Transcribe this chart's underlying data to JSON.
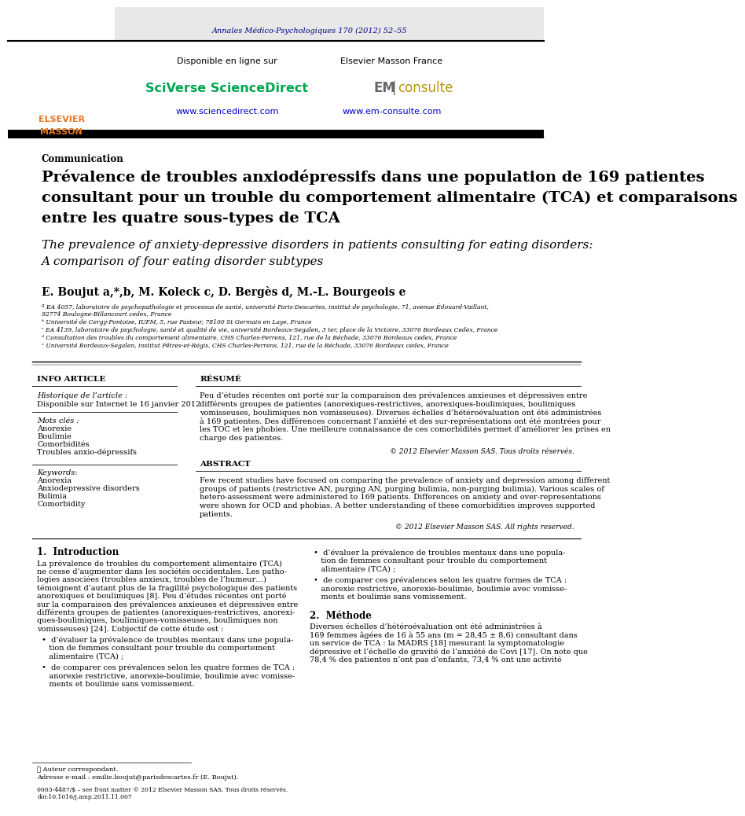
{
  "background_color": "#ffffff",
  "page_width": 9.92,
  "page_height": 13.23,
  "journal_line": "Annales Médico-Psychologiques 170 (2012) 52–55",
  "journal_line_color": "#000080",
  "header_bg_color": "#e8e8e8",
  "elsevier_color": "#e87722",
  "sciverse_color": "#00a651",
  "sciencedirect_url_color": "#0000cc",
  "disponible_text": "Disponible en ligne sur",
  "sciverse_text": "SciVerse ScienceDirect",
  "sciencedirect_url": "www.sciencedirect.com",
  "elsevier_masson_text": "Elsevier Masson France",
  "em_url": "www.em-consulte.com",
  "section_label": "Communication",
  "title_fr_lines": [
    "Prévalence de troubles anxiodépressifs dans une population de 169 patientes",
    "consultant pour un trouble du comportement alimentaire (TCA) et comparaisons",
    "entre les quatre sous-types de TCA"
  ],
  "title_en_lines": [
    "The prevalence of anxiety-depressive disorders in patients consulting for eating disorders:",
    "A comparison of four eating disorder subtypes"
  ],
  "authors": "E. Boujut a,*,b, M. Koleck c, D. Bergès d, M.-L. Bourgeois e",
  "affil_lines": [
    "ª EA 4057, laboratoire de psychopathologie et processus de santé, université Paris-Descartes, institut de psychologie, 71, avenue Édouard-Vaillant,",
    "92774 Boulogne-Billancourt cedex, France",
    "ᵇ Université de Cergy-Pontoise, IUFM, 5, rue Pasteur, 78100 St Germain en Laye, France",
    "ᶜ EA 4139, laboratoire de psychologie, santé et qualité de vie, université Bordeaux-Segalen, 3 ter, place de la Victoire, 33076 Bordeaux Cedex, France",
    "ᵈ Consultation des troubles du comportement alimentaire, CHS Charles-Perrens, 121, rue de la Béchade, 33076 Bordeaux cedex, France",
    "ᵉ Université Bordeaux-Segalen, institut Pêtres-et-Régis, CHS Charles-Perrens, 121, rue de la Béchade, 33076 Bordeaux cedex, France"
  ],
  "info_article_title": "INFO ARTICLE",
  "historique_label": "Historique de l’article :",
  "historique_date": "Disponible sur Internet le 16 janvier 2012",
  "mots_cles_label": "Mots clés :",
  "mots_cles": [
    "Anorexie",
    "Boulimie",
    "Comorbidités",
    "Troubles anxio-dépressifs"
  ],
  "keywords_label": "Keywords:",
  "keywords": [
    "Anorexia",
    "Anxiodepressive disorders",
    "Bulimia",
    "Comorbidity"
  ],
  "resume_title": "RÉSUMÉ",
  "resume_lines": [
    "Peu d’études récentes ont porté sur la comparaison des prévalences anxieuses et dépressives entre",
    "différents groupes de patientes (anorexiques-restrictives, anorexiques-boulimiques, boulimiques",
    "vomisseuses, boulimiques non vomisseuses). Diverses échelles d’hétéroévaluation ont été administrées",
    "à 169 patientes. Des différences concernant l’anxiété et des sur-représentations ont été montrées pour",
    "les TOC et les phobies. Une meilleure connaissance de ces comorbidités permet d’améliorer les prises en",
    "charge des patientes."
  ],
  "resume_copyright": "© 2012 Elsevier Masson SAS. Tous droits réservés.",
  "abstract_title": "ABSTRACT",
  "abstract_lines": [
    "Few recent studies have focused on comparing the prevalence of anxiety and depression among different",
    "groups of patients (restrictive AN, purging AN, purging bulimia, non-purging bulimia). Various scales of",
    "hetero-assessment were administered to 169 patients. Differences on anxiety and over-representations",
    "were shown for OCD and phobias. A better understanding of these comorbidities improves supported",
    "patients."
  ],
  "abstract_copyright": "© 2012 Elsevier Masson SAS. All rights reserved.",
  "intro_title": "1.  Introduction",
  "intro_lines": [
    "La prévalence de troubles du comportement alimentaire (TCA)",
    "ne cesse d’augmenter dans les sociétés occidentales. Les patho-",
    "logies associées (troubles anxieux, troubles de l’humeur…)",
    "témoignent d’autant plus de la fragilité psychologique des patients",
    "anorexiques et boulimiques [8]. Peu d’études récentes ont porté",
    "sur la comparaison des prévalences anxieuses et dépressives entre",
    "différents groupes de patientes (anorexiques-restrictives, anorexi-",
    "ques-boulimiques, boulimiques-vomisseuses, boulimiques non",
    "vomisseuses) [24]. L’objectif de cette étude est :"
  ],
  "bullet1_lines": [
    "•  d’évaluer la prévalence de troubles mentaux dans une popula-",
    "   tion de femmes consultant pour trouble du comportement",
    "   alimentaire (TCA) ;"
  ],
  "bullet2_lines": [
    "•  de comparer ces prévalences selon les quatre formes de TCA :",
    "   anorexie restrictive, anorexie-boulimie, boulimie avec vomisse-",
    "   ments et boulimie sans vomissement."
  ],
  "right_bullet1_lines": [
    "•  d’évaluer la prévalence de troubles mentaux dans une popula-",
    "   tion de femmes consultant pour trouble du comportement",
    "   alimentaire (TCA) ;"
  ],
  "right_bullet2_lines": [
    "•  de comparer ces prévalences selon les quatre formes de TCA :",
    "   anorexie restrictive, anorexie-boulimie, boulimie avec vomisse-",
    "   ments et boulimie sans vomissement."
  ],
  "methode_title": "2.  Méthode",
  "methode_lines": [
    "Diverses échelles d’hétéroévaluation ont été administrées à",
    "169 femmes âgées de 16 à 55 ans (m = 28,45 ± 8,6) consultant dans",
    "un service de TCA : la MADRS [18] mesurant la symptomatologie",
    "dépressive et l’échelle de gravité de l’anxiété de Covi [17]. On note que",
    "78,4 % des patientes n’ont pas d’enfants, 73,4 % ont une activité"
  ],
  "footer_star": "★ Auteur correspondant.",
  "footer_email": "Adresse e-mail : emilie.boujut@parisdescartes.fr (E. Boujut).",
  "footer_doi1": "0003-4487/$ – see front matter © 2012 Elsevier Masson SAS. Tous droits réservés.",
  "footer_doi2": "doi:10.1016/j.amp.2011.11.007"
}
